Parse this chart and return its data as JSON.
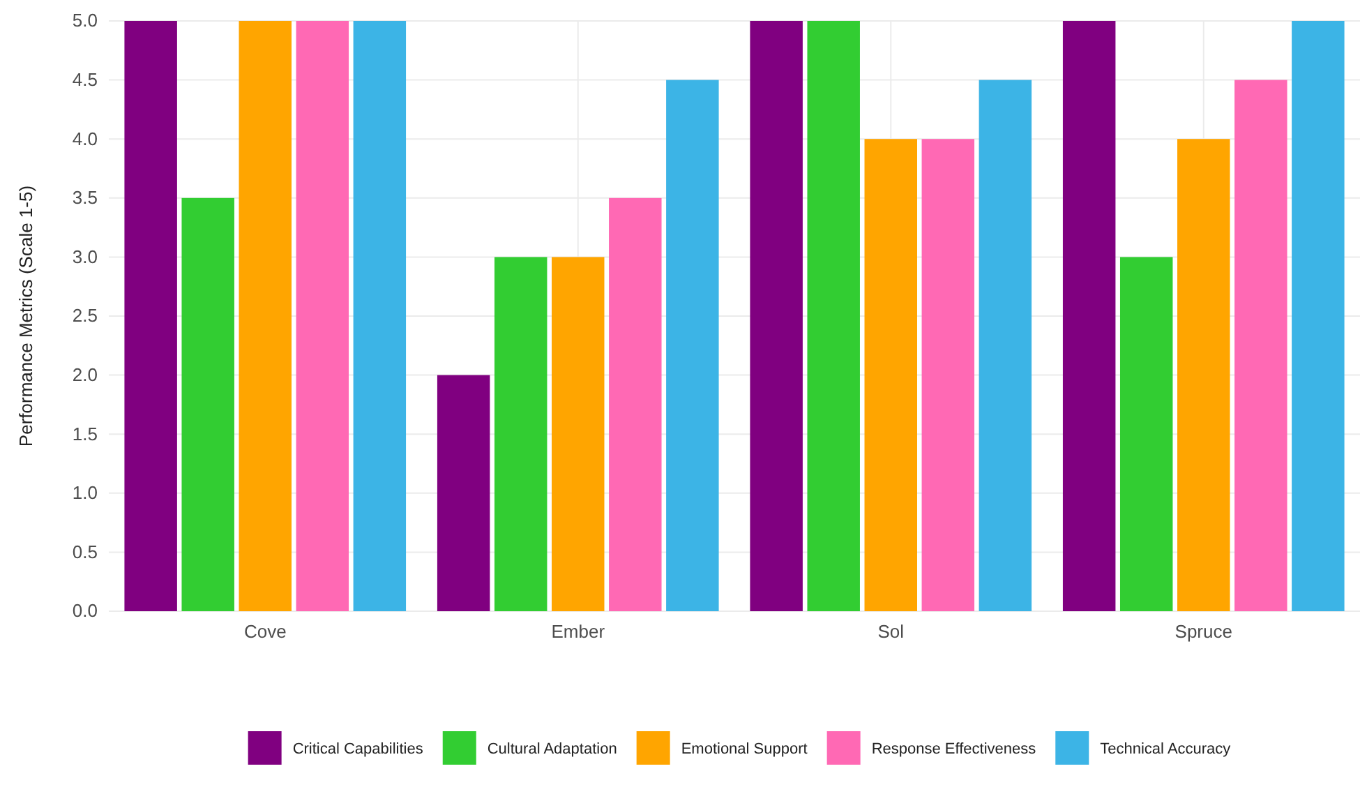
{
  "chart_data": {
    "type": "bar",
    "ylabel": "Performance Metrics (Scale 1-5)",
    "categories": [
      "Cove",
      "Ember",
      "Sol",
      "Spruce"
    ],
    "series": [
      {
        "name": "Critical Capabilities",
        "color": "#800080",
        "values": [
          5,
          2,
          5,
          5
        ]
      },
      {
        "name": "Cultural Adaptation",
        "color": "#32cd32",
        "values": [
          3.5,
          3,
          5,
          3
        ]
      },
      {
        "name": "Emotional Support",
        "color": "#ffa500",
        "values": [
          5,
          3,
          4,
          4
        ]
      },
      {
        "name": "Response Effectiveness",
        "color": "#ff69b4",
        "values": [
          5,
          3.5,
          4,
          4.5
        ]
      },
      {
        "name": "Technical Accuracy",
        "color": "#3cb4e6",
        "values": [
          5,
          4.5,
          4.5,
          5
        ]
      }
    ],
    "ylim": [
      0,
      5
    ],
    "yticks": [
      {
        "value": 0,
        "label": "0.0"
      },
      {
        "value": 0.5,
        "label": "0.5"
      },
      {
        "value": 1,
        "label": "1.0"
      },
      {
        "value": 1.5,
        "label": "1.5"
      },
      {
        "value": 2,
        "label": "2.0"
      },
      {
        "value": 2.5,
        "label": "2.5"
      },
      {
        "value": 3,
        "label": "3.0"
      },
      {
        "value": 3.5,
        "label": "3.5"
      },
      {
        "value": 4,
        "label": "4.0"
      },
      {
        "value": 4.5,
        "label": "4.5"
      },
      {
        "value": 5,
        "label": "5.0"
      }
    ],
    "grid": true,
    "legend": "bottom"
  }
}
